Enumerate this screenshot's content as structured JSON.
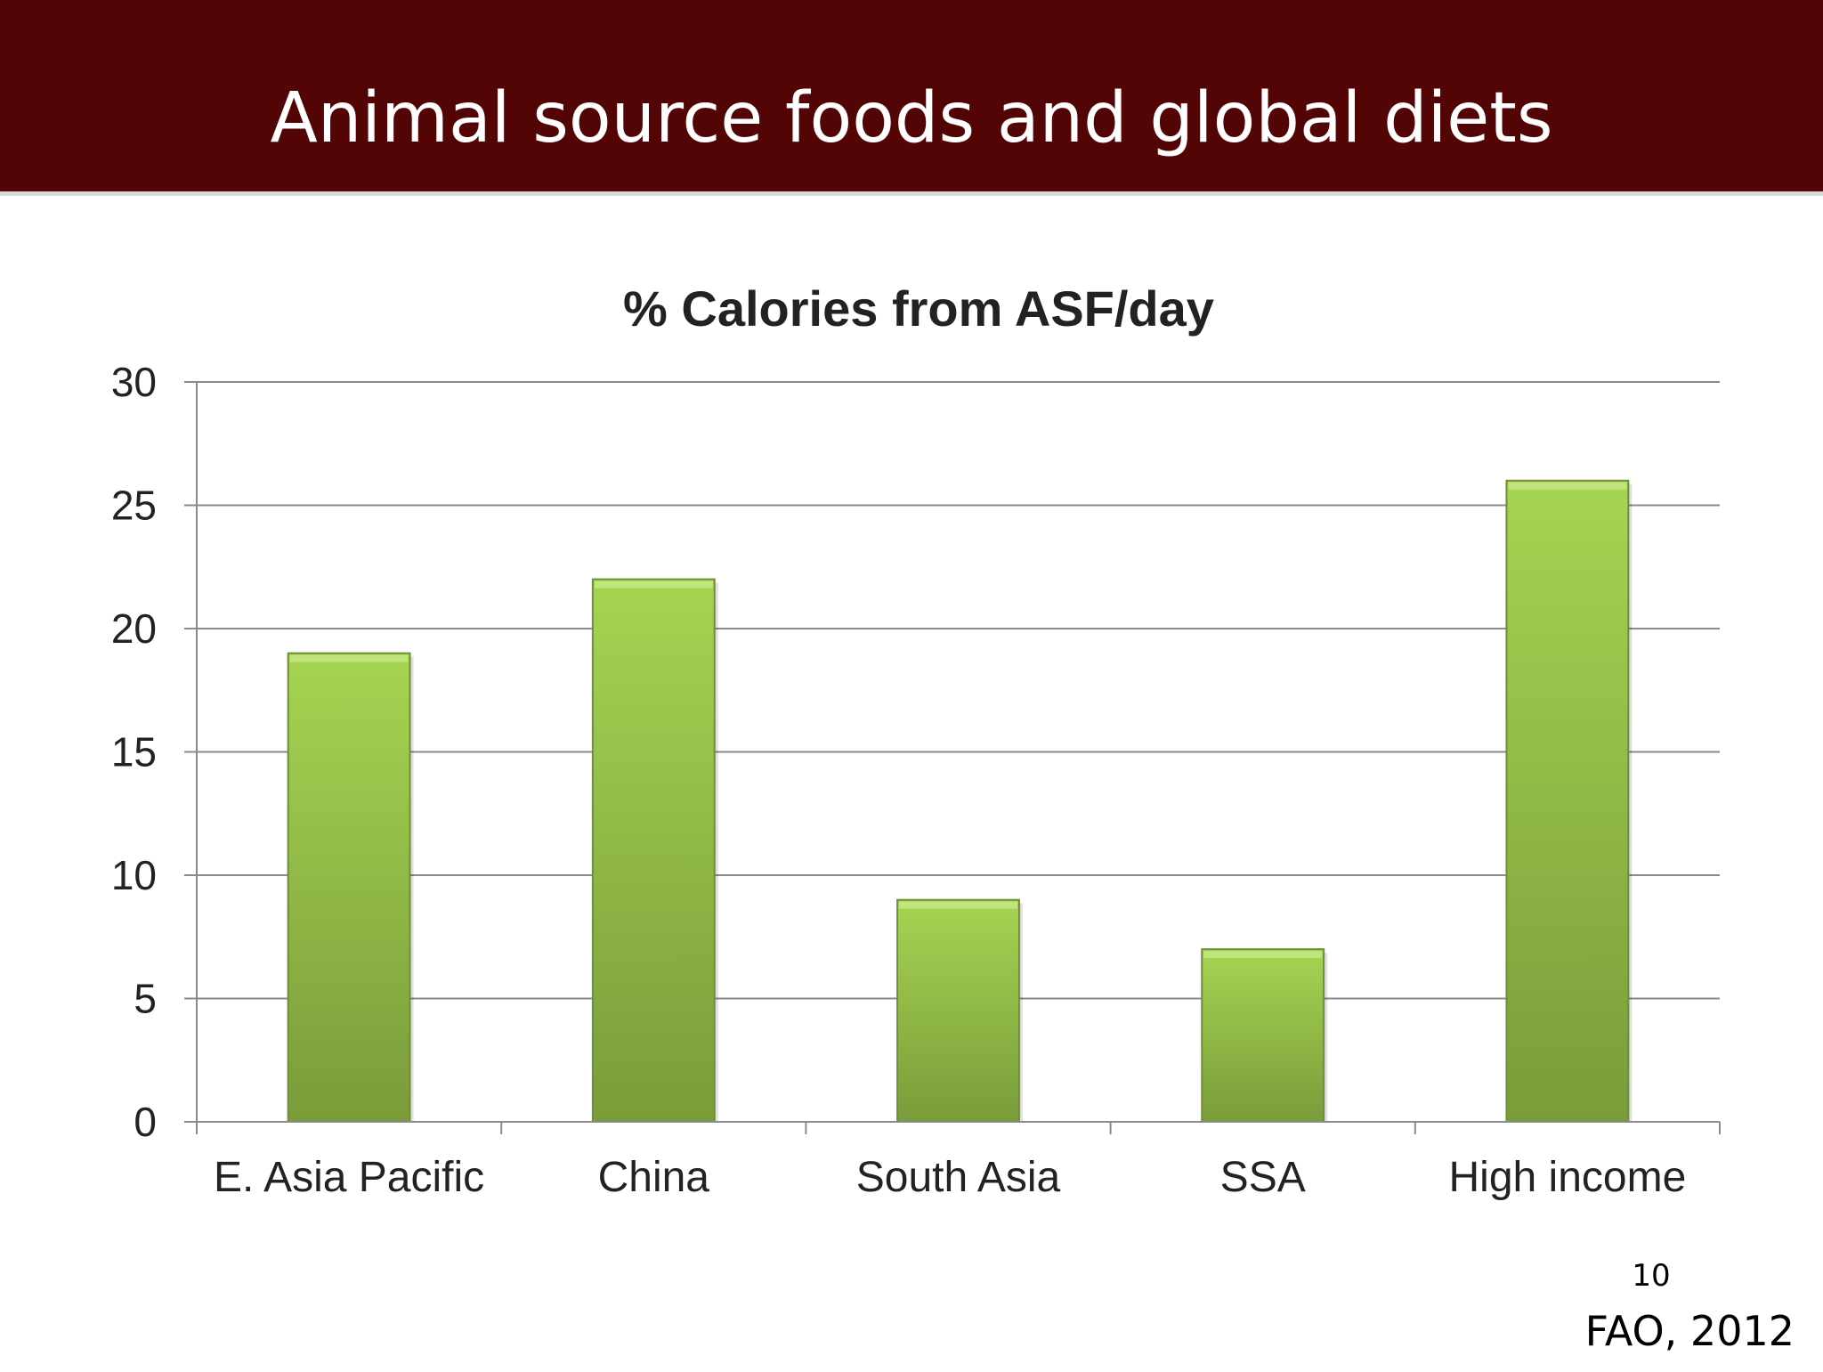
{
  "slide": {
    "title": "Animal source foods and global diets",
    "page_number": "10",
    "source": "FAO, 2012"
  },
  "colors": {
    "header_bg": "#520504",
    "bar_top": "#a6d452",
    "bar_bottom": "#7a9c3a",
    "grid": "#8a8a8a"
  },
  "chart_data": {
    "type": "bar",
    "title": "% Calories from ASF/day",
    "categories": [
      "E. Asia Pacific",
      "China",
      "South Asia",
      "SSA",
      "High income"
    ],
    "values": [
      19,
      22,
      9,
      7,
      26
    ],
    "xlabel": "",
    "ylabel": "",
    "ylim": [
      0,
      30
    ],
    "yticks": [
      0,
      5,
      10,
      15,
      20,
      25,
      30
    ],
    "grid": true,
    "legend": "none"
  }
}
